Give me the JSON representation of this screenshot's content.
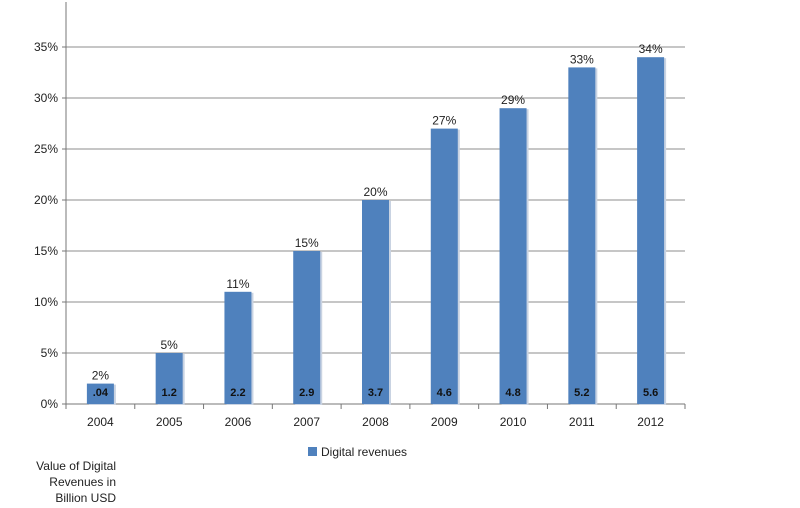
{
  "chart_data": {
    "type": "bar",
    "categories": [
      "2004",
      "2005",
      "2006",
      "2007",
      "2008",
      "2009",
      "2010",
      "2011",
      "2012"
    ],
    "series": [
      {
        "name": "Digital revenues",
        "values": [
          2,
          5,
          11,
          15,
          20,
          27,
          29,
          33,
          34
        ],
        "value_labels": [
          "2%",
          "5%",
          "11%",
          "15%",
          "20%",
          "27%",
          "29%",
          "33%",
          "34%"
        ],
        "inner_labels": [
          ".04",
          "1.2",
          "2.2",
          "2.9",
          "3.7",
          "4.6",
          "4.8",
          "5.2",
          "5.6"
        ]
      }
    ],
    "y_ticks": [
      "0%",
      "5%",
      "10%",
      "15%",
      "20%",
      "25%",
      "30%",
      "35%"
    ],
    "ylim": [
      0,
      35
    ],
    "grid": true,
    "legend_position": "bottom",
    "bar_color": "#4f81bd",
    "note": [
      "Value of Digital",
      "Revenues in",
      "Billion USD"
    ]
  }
}
